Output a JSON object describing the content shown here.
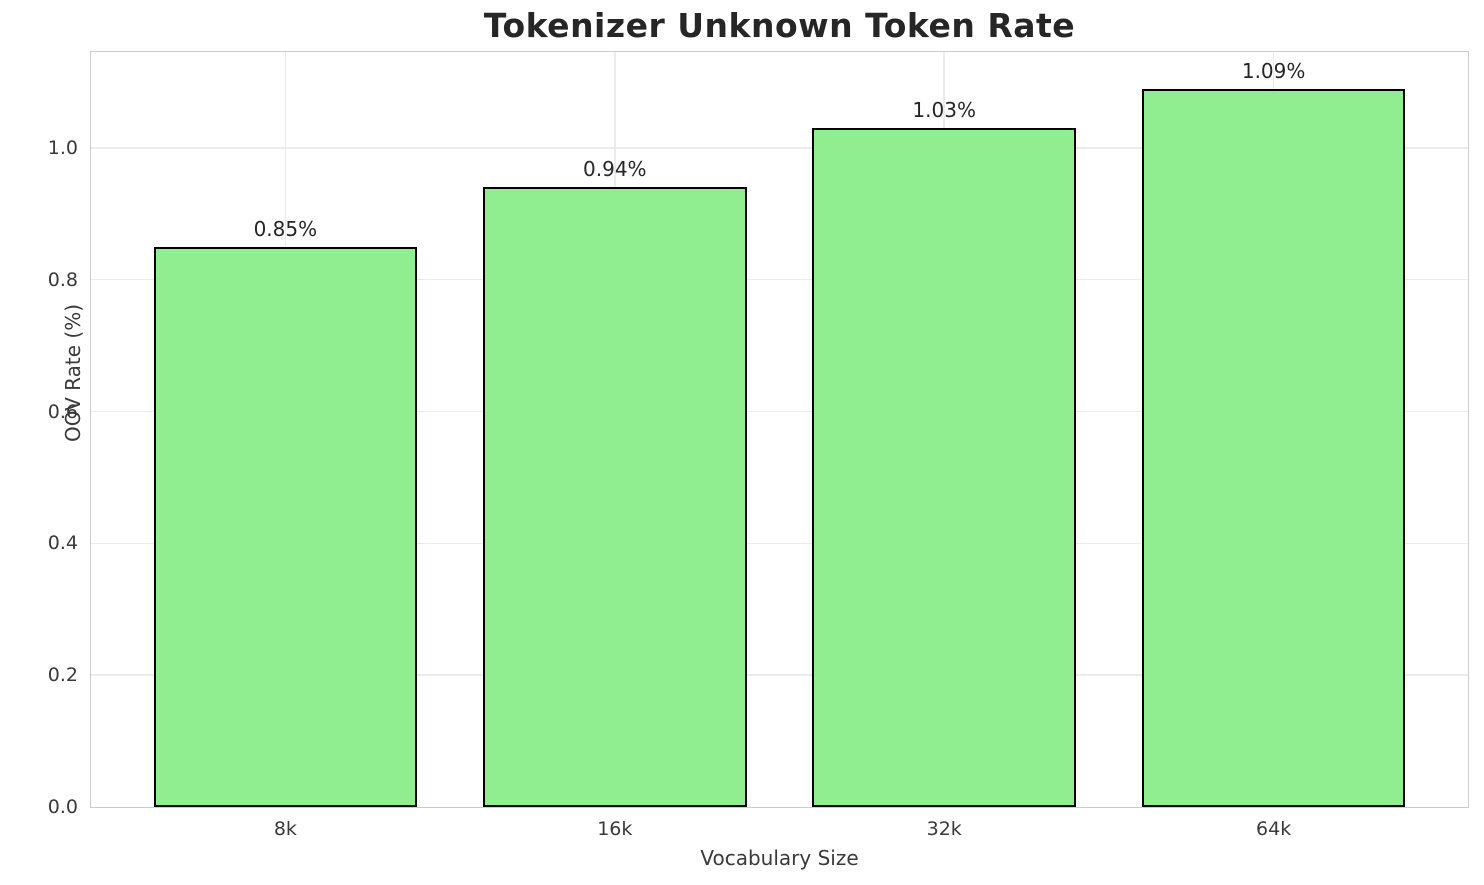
{
  "chart_data": {
    "type": "bar",
    "title": "Tokenizer Unknown Token Rate",
    "xlabel": "Vocabulary Size",
    "ylabel": "OOV Rate (%)",
    "categories": [
      "8k",
      "16k",
      "32k",
      "64k"
    ],
    "values": [
      0.85,
      0.94,
      1.03,
      1.09
    ],
    "bar_labels": [
      "0.85%",
      "0.94%",
      "1.03%",
      "1.09%"
    ],
    "ytick_values": [
      0.0,
      0.2,
      0.4,
      0.6,
      0.8,
      1.0
    ],
    "ytick_labels": [
      "0.0",
      "0.2",
      "0.4",
      "0.6",
      "0.8",
      "1.0"
    ],
    "ylim": [
      0,
      1.1455
    ],
    "xlim": [
      -0.59,
      3.59
    ],
    "bar_width": 0.8,
    "grid": true,
    "legend_position": "none",
    "colors": {
      "bar_fill": "#90EE90",
      "bar_edge": "#000000",
      "grid_line": "#ebebeb",
      "spine": "#cccccc",
      "title_text": "#262626",
      "tick_text": "#3a3a3a",
      "background": "#ffffff"
    }
  }
}
